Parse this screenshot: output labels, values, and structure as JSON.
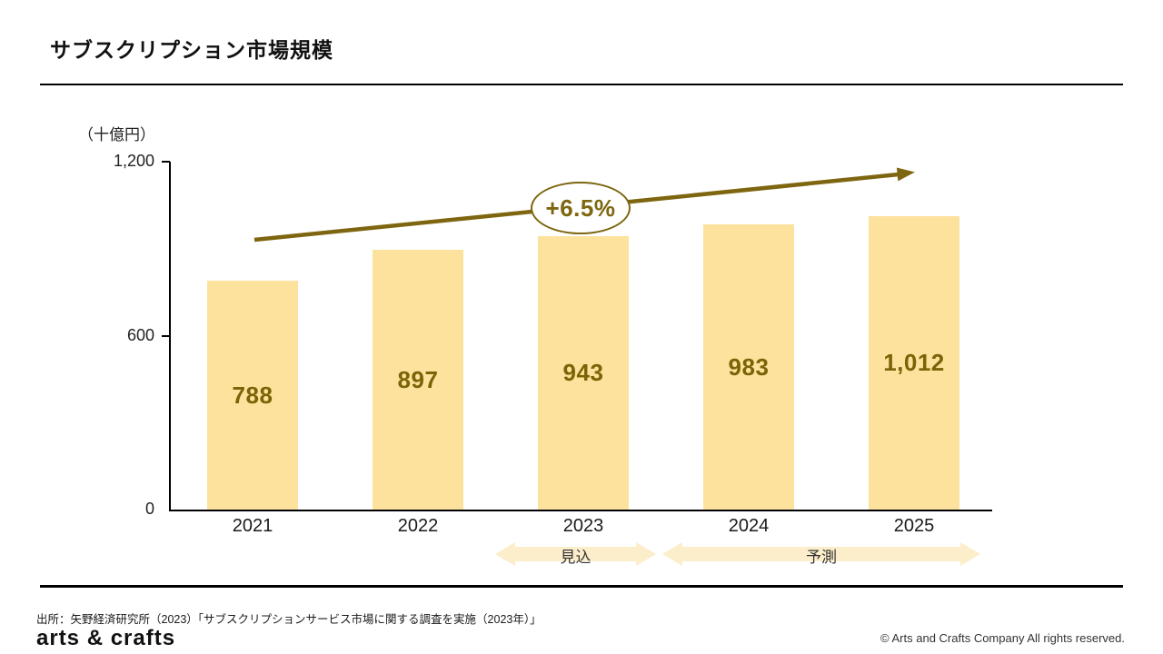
{
  "header": {
    "title": "サブスクリプション市場規模"
  },
  "chart_data": {
    "type": "bar",
    "title": "サブスクリプション市場規模",
    "unit_label": "（十億円）",
    "categories": [
      "2021",
      "2022",
      "2023",
      "2024",
      "2025"
    ],
    "values": [
      788,
      897,
      943,
      983,
      1012
    ],
    "value_labels": [
      "788",
      "897",
      "943",
      "983",
      "1,012"
    ],
    "ylim": [
      0,
      1200
    ],
    "yticks": [
      {
        "value": 0,
        "label": "0"
      },
      {
        "value": 600,
        "label": "600"
      },
      {
        "value": 1200,
        "label": "1,200"
      }
    ],
    "growth_annotation": "+6.5%",
    "bands": [
      {
        "label": "見込",
        "covers": [
          "2023"
        ]
      },
      {
        "label": "予測",
        "covers": [
          "2024",
          "2025"
        ]
      }
    ],
    "legend": "none",
    "grid": false,
    "colors": {
      "bar": "#FCE29C",
      "value_text": "#7A6407",
      "arrow": "#7D660F",
      "band": "#FCEECB"
    }
  },
  "footer": {
    "source": "出所：矢野経済研究所（2023）「サブスクリプションサービス市場に関する調査を実施（2023年）」",
    "logo": "arts & crafts",
    "copyright": "© Arts and Crafts Company All rights reserved."
  }
}
